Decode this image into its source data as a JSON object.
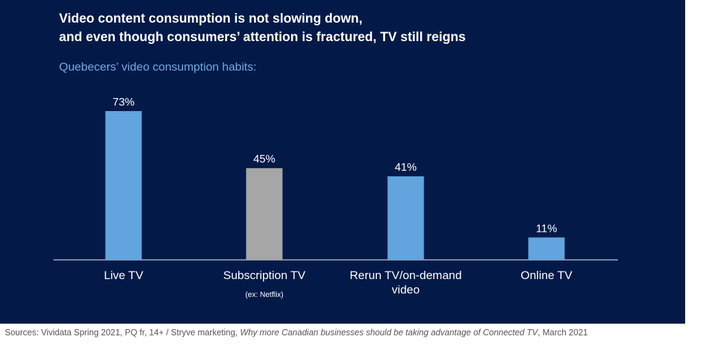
{
  "slide": {
    "title_line1": "Video content consumption is not slowing down,",
    "title_line2": "and even though consumers’ attention is fractured, TV still reigns",
    "subtitle": "Quebecers’ video consumption habits:"
  },
  "chart_data": {
    "type": "bar",
    "title": "",
    "xlabel": "",
    "ylabel": "",
    "ylim": [
      0,
      100
    ],
    "grid": false,
    "categories": [
      "Live TV",
      "Subscription TV",
      "Rerun TV/on-demand video",
      "Online TV"
    ],
    "category_lines": [
      [
        "Live TV"
      ],
      [
        "Subscription TV"
      ],
      [
        "Rerun TV/on-demand",
        "video"
      ],
      [
        "Online TV"
      ]
    ],
    "category_notes": [
      "",
      "(ex: Netflix)",
      "",
      ""
    ],
    "values": [
      73,
      45,
      41,
      11
    ],
    "value_labels": [
      "73%",
      "45%",
      "41%",
      "11%"
    ],
    "bar_colors": [
      "#62a4de",
      "#a6a6a6",
      "#62a4de",
      "#62a4de"
    ]
  },
  "colors": {
    "background": "#031a48",
    "accent_blue": "#62a4de",
    "subtitle_blue": "#6fa9e3",
    "gray_bar": "#a6a6a6",
    "text": "#ffffff"
  },
  "footer": {
    "source_prefix": "Sources: Vividata Spring 2021, PQ fr, 14+ / Stryve marketing, ",
    "source_italic": "Why more Canadian businesses should be taking advantage of Connected TV",
    "source_suffix": ", March 2021"
  }
}
